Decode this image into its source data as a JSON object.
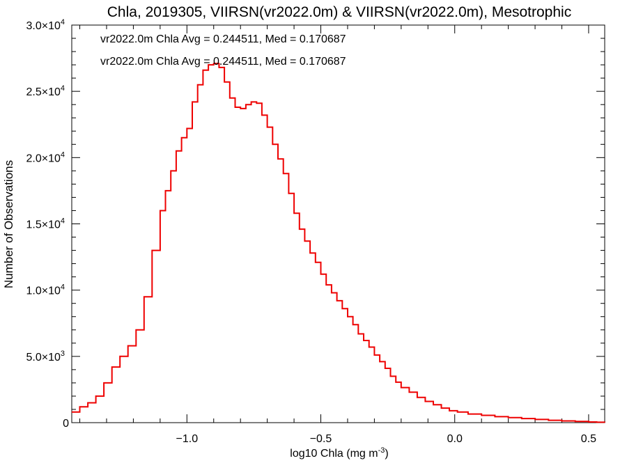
{
  "chart_data": {
    "type": "line",
    "title": "Chla, 2019305, VIIRSN(vr2022.0m) & VIIRSN(vr2022.0m), Mesotrophic",
    "xlabel": "log10 Chla (mg m",
    "xlabel_sup": "-3",
    "xlabel_end": ")",
    "ylabel": "Number of Observations",
    "xlim": [
      -1.43,
      0.56
    ],
    "ylim": [
      0,
      30000
    ],
    "grid": false,
    "x_ticks": [
      {
        "v": -1.0,
        "label": "−1.0"
      },
      {
        "v": -0.5,
        "label": "−0.5"
      },
      {
        "v": 0.0,
        "label": "0.0"
      },
      {
        "v": 0.5,
        "label": "0.5"
      }
    ],
    "y_ticks": [
      {
        "v": 0,
        "label": "0",
        "sup": ""
      },
      {
        "v": 5000,
        "label": "5.0×10",
        "sup": "3"
      },
      {
        "v": 10000,
        "label": "1.0×10",
        "sup": "4"
      },
      {
        "v": 15000,
        "label": "1.5×10",
        "sup": "4"
      },
      {
        "v": 20000,
        "label": "2.0×10",
        "sup": "4"
      },
      {
        "v": 25000,
        "label": "2.5×10",
        "sup": "4"
      },
      {
        "v": 30000,
        "label": "3.0×10",
        "sup": "4"
      }
    ],
    "annotations": [
      {
        "text": "vr2022.0m Chla Avg = 0.244511, Med = 0.170687",
        "color": "#000000"
      },
      {
        "text": "vr2022.0m Chla Avg = 0.244511, Med = 0.170687",
        "color": "#ee0000"
      }
    ],
    "series": [
      {
        "color": "#ee0000",
        "step": true,
        "x": [
          -1.43,
          -1.4,
          -1.37,
          -1.34,
          -1.31,
          -1.28,
          -1.25,
          -1.22,
          -1.19,
          -1.16,
          -1.13,
          -1.1,
          -1.08,
          -1.06,
          -1.04,
          -1.02,
          -1.0,
          -0.98,
          -0.96,
          -0.94,
          -0.92,
          -0.9,
          -0.88,
          -0.86,
          -0.84,
          -0.82,
          -0.8,
          -0.78,
          -0.76,
          -0.74,
          -0.72,
          -0.7,
          -0.68,
          -0.66,
          -0.64,
          -0.62,
          -0.6,
          -0.58,
          -0.56,
          -0.54,
          -0.52,
          -0.5,
          -0.48,
          -0.46,
          -0.44,
          -0.42,
          -0.4,
          -0.38,
          -0.36,
          -0.34,
          -0.32,
          -0.3,
          -0.28,
          -0.26,
          -0.24,
          -0.22,
          -0.2,
          -0.17,
          -0.14,
          -0.11,
          -0.08,
          -0.05,
          -0.02,
          0.01,
          0.05,
          0.1,
          0.15,
          0.2,
          0.25,
          0.3,
          0.35,
          0.4,
          0.45,
          0.5,
          0.53,
          0.56
        ],
        "y": [
          800,
          1200,
          1500,
          2000,
          3000,
          4200,
          5000,
          5800,
          7000,
          9500,
          13000,
          16000,
          17500,
          19000,
          20500,
          21500,
          22200,
          24200,
          25500,
          26600,
          27000,
          27100,
          26800,
          25700,
          24500,
          23800,
          23700,
          24000,
          24200,
          24100,
          23200,
          22300,
          21000,
          19900,
          18800,
          17300,
          15800,
          14600,
          13700,
          12800,
          12100,
          11200,
          10400,
          9800,
          9200,
          8600,
          8000,
          7400,
          6700,
          6200,
          5700,
          5100,
          4600,
          4100,
          3500,
          3050,
          2650,
          2300,
          1900,
          1600,
          1350,
          1100,
          900,
          800,
          650,
          550,
          450,
          380,
          310,
          240,
          180,
          130,
          90,
          50,
          30,
          10
        ]
      }
    ]
  }
}
